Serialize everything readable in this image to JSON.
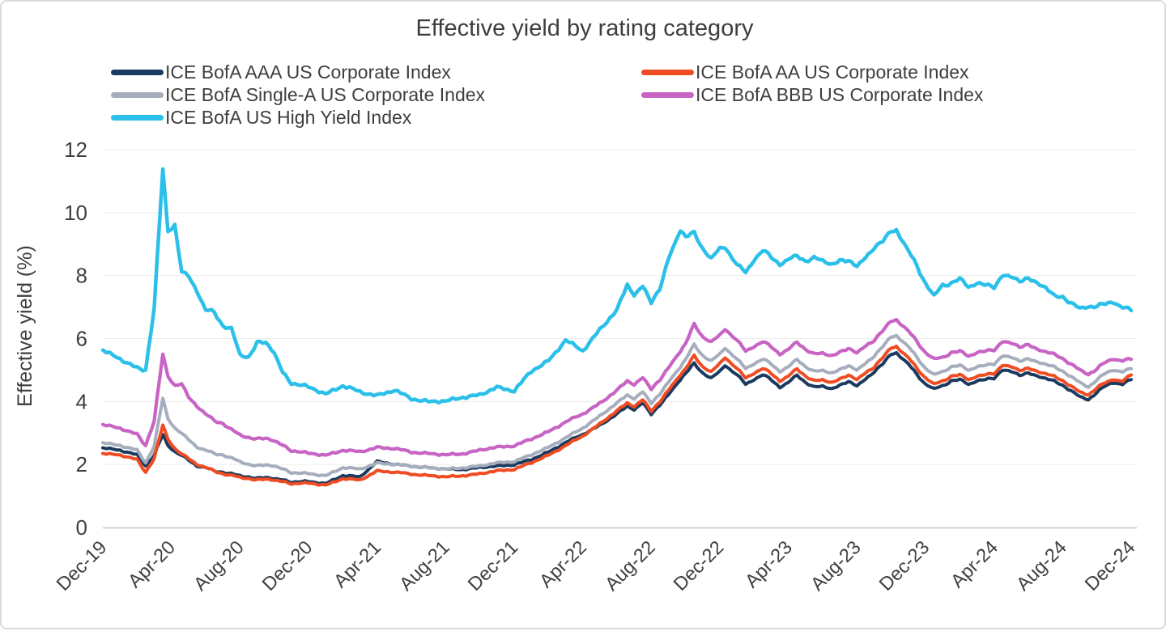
{
  "chart_data": {
    "type": "line",
    "title": "Effective yield by rating category",
    "xlabel": "",
    "ylabel": "Effective yield (%)",
    "ylim": [
      0,
      12
    ],
    "y_ticks": [
      0,
      2,
      4,
      6,
      8,
      10,
      12
    ],
    "x_tick_labels": [
      "Dec-19",
      "Apr-20",
      "Aug-20",
      "Dec-20",
      "Apr-21",
      "Aug-21",
      "Dec-21",
      "Apr-22",
      "Aug-22",
      "Dec-22",
      "Apr-23",
      "Aug-23",
      "Dec-23",
      "Apr-24",
      "Aug-24",
      "Dec-24"
    ],
    "x_tick_positions_months": [
      0,
      4,
      8,
      12,
      16,
      20,
      24,
      28,
      32,
      36,
      40,
      44,
      48,
      52,
      56,
      60
    ],
    "x_unit": "months since Dec-2019",
    "grid": "horizontal",
    "legend_position": "top",
    "axis_text_color": "#3F3F3F",
    "gridline_color": "#ECECEC",
    "baseline_color": "#CFD4D8",
    "x": [
      0,
      1,
      2,
      2.5,
      3,
      3.5,
      3.8,
      4.2,
      4.6,
      5,
      5.5,
      6,
      6.5,
      7,
      7.5,
      8,
      8.5,
      9,
      9.5,
      10,
      10.5,
      11,
      12,
      13,
      14,
      15,
      16,
      17,
      18,
      19,
      20,
      21,
      22,
      23,
      24,
      25,
      26,
      27,
      28,
      29,
      30,
      30.6,
      31,
      31.5,
      32,
      32.5,
      33,
      33.7,
      34,
      34.5,
      35,
      35.5,
      36,
      36.3,
      37,
      37.5,
      38,
      38.5,
      39,
      39.5,
      40,
      40.5,
      41,
      41.5,
      42,
      42.5,
      43,
      43.5,
      44,
      44.5,
      45,
      45.5,
      46,
      46.3,
      47,
      47.5,
      48,
      48.5,
      49,
      49.5,
      50,
      50.5,
      51,
      51.5,
      52,
      52.5,
      53,
      53.5,
      54,
      54.5,
      55,
      55.5,
      56,
      56.5,
      57,
      57.5,
      58,
      58.5,
      59,
      59.5,
      60
    ],
    "series": [
      {
        "name": "ICE BofA AAA US Corporate Index",
        "color": "#1B3A5F",
        "legend_column": 0,
        "legend_row": 0,
        "values": [
          2.54,
          2.45,
          2.3,
          1.95,
          2.3,
          2.95,
          2.6,
          2.4,
          2.28,
          2.15,
          1.95,
          1.9,
          1.8,
          1.75,
          1.7,
          1.65,
          1.6,
          1.55,
          1.6,
          1.55,
          1.5,
          1.45,
          1.45,
          1.4,
          1.65,
          1.6,
          2.1,
          2.0,
          1.95,
          1.9,
          1.85,
          1.85,
          1.9,
          1.95,
          2.0,
          2.15,
          2.4,
          2.7,
          2.95,
          3.25,
          3.6,
          3.85,
          3.75,
          3.95,
          3.6,
          3.9,
          4.2,
          4.7,
          4.9,
          5.2,
          4.9,
          4.75,
          4.95,
          5.15,
          4.85,
          4.55,
          4.7,
          4.85,
          4.7,
          4.45,
          4.6,
          4.85,
          4.6,
          4.45,
          4.5,
          4.4,
          4.5,
          4.65,
          4.5,
          4.7,
          4.95,
          5.2,
          5.5,
          5.55,
          5.2,
          4.85,
          4.55,
          4.4,
          4.5,
          4.65,
          4.7,
          4.55,
          4.65,
          4.7,
          4.75,
          5.0,
          4.95,
          4.85,
          4.9,
          4.8,
          4.75,
          4.65,
          4.5,
          4.35,
          4.15,
          4.05,
          4.3,
          4.5,
          4.6,
          4.55,
          4.7
        ]
      },
      {
        "name": "ICE BofA AA US Corporate Index",
        "color": "#F04C23",
        "legend_column": 1,
        "legend_row": 0,
        "values": [
          2.36,
          2.3,
          2.15,
          1.75,
          2.2,
          3.25,
          2.8,
          2.5,
          2.32,
          2.2,
          2.0,
          1.9,
          1.8,
          1.7,
          1.65,
          1.6,
          1.55,
          1.5,
          1.55,
          1.5,
          1.45,
          1.4,
          1.4,
          1.35,
          1.55,
          1.5,
          1.8,
          1.75,
          1.7,
          1.65,
          1.6,
          1.65,
          1.7,
          1.8,
          1.85,
          2.05,
          2.3,
          2.6,
          2.9,
          3.3,
          3.7,
          3.95,
          3.85,
          4.05,
          3.7,
          4.0,
          4.35,
          4.85,
          5.05,
          5.45,
          5.1,
          4.95,
          5.2,
          5.4,
          5.05,
          4.75,
          4.9,
          5.05,
          4.9,
          4.65,
          4.8,
          5.05,
          4.8,
          4.65,
          4.7,
          4.6,
          4.7,
          4.85,
          4.7,
          4.9,
          5.1,
          5.4,
          5.7,
          5.75,
          5.4,
          5.05,
          4.75,
          4.55,
          4.65,
          4.8,
          4.85,
          4.7,
          4.8,
          4.85,
          4.9,
          5.15,
          5.1,
          5.0,
          5.05,
          4.95,
          4.9,
          4.8,
          4.65,
          4.5,
          4.3,
          4.2,
          4.45,
          4.6,
          4.7,
          4.65,
          4.85
        ]
      },
      {
        "name": "ICE BofA Single-A US Corporate Index",
        "color": "#A6ADBC",
        "legend_column": 0,
        "legend_row": 1,
        "values": [
          2.7,
          2.6,
          2.45,
          2.05,
          2.6,
          4.1,
          3.45,
          3.15,
          2.98,
          2.8,
          2.55,
          2.45,
          2.35,
          2.3,
          2.2,
          2.1,
          2.0,
          1.95,
          2.0,
          1.95,
          1.85,
          1.75,
          1.7,
          1.65,
          1.9,
          1.85,
          2.05,
          2.0,
          1.95,
          1.9,
          1.85,
          1.9,
          1.95,
          2.05,
          2.1,
          2.3,
          2.55,
          2.85,
          3.15,
          3.55,
          3.95,
          4.2,
          4.1,
          4.3,
          3.95,
          4.25,
          4.6,
          5.1,
          5.35,
          5.8,
          5.45,
          5.3,
          5.5,
          5.7,
          5.35,
          5.05,
          5.2,
          5.35,
          5.2,
          4.95,
          5.1,
          5.35,
          5.1,
          4.95,
          5.0,
          4.9,
          5.0,
          5.15,
          5.0,
          5.2,
          5.45,
          5.75,
          6.05,
          6.1,
          5.75,
          5.4,
          5.05,
          4.85,
          4.95,
          5.1,
          5.15,
          5.0,
          5.1,
          5.15,
          5.2,
          5.45,
          5.4,
          5.3,
          5.35,
          5.25,
          5.2,
          5.1,
          4.95,
          4.8,
          4.6,
          4.45,
          4.7,
          4.9,
          5.0,
          4.95,
          5.05
        ]
      },
      {
        "name": "ICE BofA BBB US Corporate Index",
        "color": "#C764C4",
        "legend_column": 1,
        "legend_row": 1,
        "values": [
          3.28,
          3.15,
          2.95,
          2.6,
          3.4,
          5.5,
          4.8,
          4.5,
          4.55,
          4.15,
          3.85,
          3.6,
          3.4,
          3.3,
          3.1,
          2.95,
          2.85,
          2.8,
          2.85,
          2.75,
          2.6,
          2.45,
          2.35,
          2.3,
          2.45,
          2.4,
          2.55,
          2.5,
          2.4,
          2.35,
          2.3,
          2.35,
          2.45,
          2.55,
          2.6,
          2.8,
          3.05,
          3.35,
          3.6,
          3.95,
          4.35,
          4.65,
          4.55,
          4.75,
          4.4,
          4.7,
          5.05,
          5.6,
          5.85,
          6.45,
          6.05,
          5.9,
          6.1,
          6.3,
          5.95,
          5.6,
          5.75,
          5.9,
          5.75,
          5.5,
          5.65,
          5.9,
          5.65,
          5.5,
          5.55,
          5.45,
          5.55,
          5.7,
          5.55,
          5.75,
          5.95,
          6.25,
          6.55,
          6.6,
          6.25,
          5.9,
          5.55,
          5.35,
          5.4,
          5.55,
          5.6,
          5.45,
          5.55,
          5.6,
          5.65,
          5.9,
          5.85,
          5.75,
          5.8,
          5.65,
          5.6,
          5.5,
          5.35,
          5.2,
          5.0,
          4.85,
          5.05,
          5.25,
          5.35,
          5.3,
          5.35
        ]
      },
      {
        "name": "ICE BofA US High Yield Index",
        "color": "#2BC0EA",
        "legend_column": 0,
        "legend_row": 2,
        "values": [
          5.65,
          5.35,
          5.05,
          5.0,
          7.0,
          11.38,
          9.4,
          9.6,
          8.1,
          8.0,
          7.5,
          6.9,
          6.85,
          6.4,
          6.3,
          5.5,
          5.4,
          5.85,
          5.9,
          5.55,
          4.9,
          4.6,
          4.45,
          4.25,
          4.5,
          4.3,
          4.2,
          4.35,
          4.1,
          4.0,
          4.0,
          4.15,
          4.2,
          4.45,
          4.35,
          4.95,
          5.3,
          5.95,
          5.6,
          6.3,
          6.9,
          7.7,
          7.4,
          7.65,
          7.15,
          7.6,
          8.5,
          9.45,
          9.25,
          9.35,
          8.85,
          8.55,
          8.85,
          8.9,
          8.35,
          8.1,
          8.5,
          8.8,
          8.6,
          8.35,
          8.5,
          8.65,
          8.45,
          8.55,
          8.5,
          8.35,
          8.45,
          8.5,
          8.3,
          8.55,
          8.9,
          9.1,
          9.4,
          9.45,
          8.8,
          8.3,
          7.75,
          7.35,
          7.7,
          7.75,
          7.9,
          7.65,
          7.75,
          7.7,
          7.65,
          8.0,
          7.95,
          7.85,
          7.9,
          7.75,
          7.65,
          7.35,
          7.3,
          7.15,
          6.95,
          7.0,
          7.05,
          7.1,
          7.15,
          7.0,
          6.9
        ]
      }
    ]
  }
}
